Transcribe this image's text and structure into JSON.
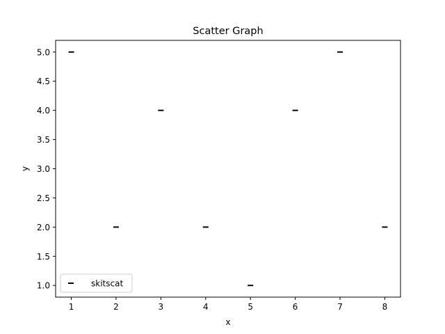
{
  "chart_data": {
    "type": "scatter",
    "title": "Scatter Graph",
    "xlabel": "x",
    "ylabel": "y",
    "xlim": [
      0.65,
      8.35
    ],
    "ylim": [
      0.8,
      5.2
    ],
    "xticks": [
      1,
      2,
      3,
      4,
      5,
      6,
      7,
      8
    ],
    "yticks": [
      1.0,
      1.5,
      2.0,
      2.5,
      3.0,
      3.5,
      4.0,
      4.5,
      5.0
    ],
    "xtick_labels": [
      "1",
      "2",
      "3",
      "4",
      "5",
      "6",
      "7",
      "8"
    ],
    "ytick_labels": [
      "1.0",
      "1.5",
      "2.0",
      "2.5",
      "3.0",
      "3.5",
      "4.0",
      "4.5",
      "5.0"
    ],
    "grid": false,
    "legend_position": "lower-left",
    "marker": "hline",
    "series": [
      {
        "name": "skitscat",
        "color": "#000000",
        "x": [
          1,
          2,
          3,
          4,
          5,
          6,
          7,
          8
        ],
        "y": [
          5,
          2,
          4,
          2,
          1,
          4,
          5,
          2
        ]
      }
    ]
  }
}
